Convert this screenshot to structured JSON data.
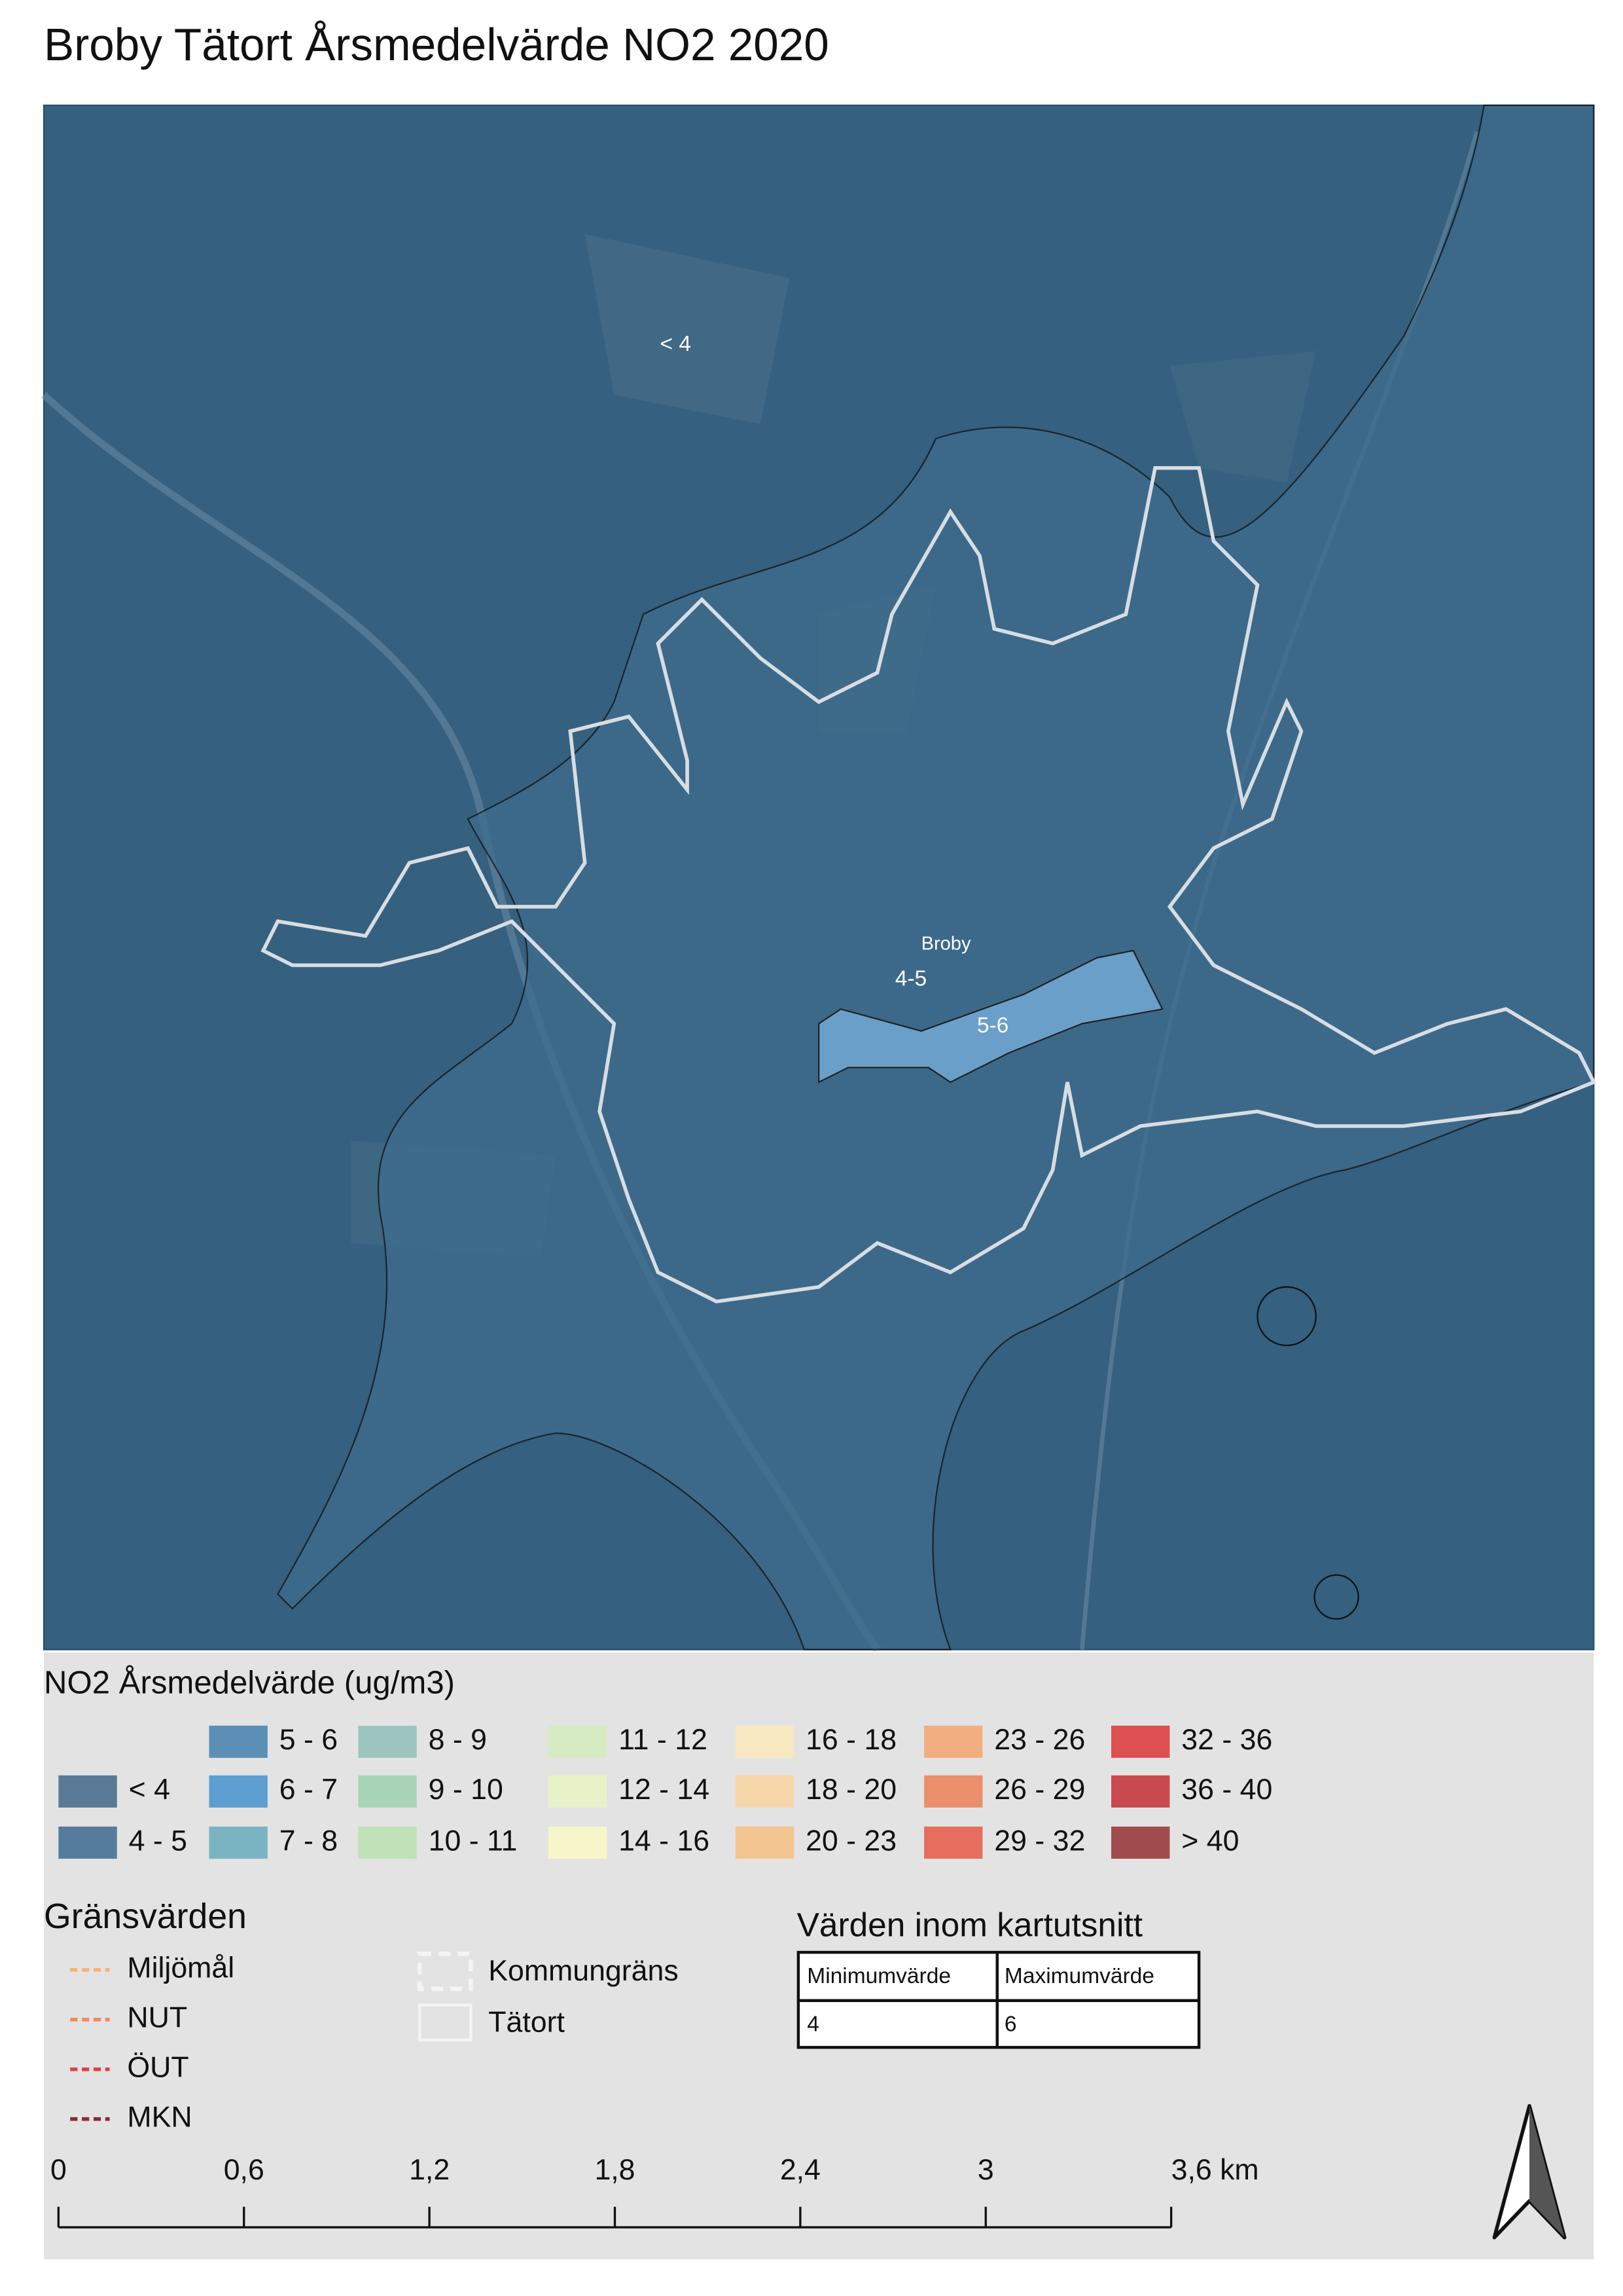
{
  "title": "Broby Tätort Årsmedelvärde NO2 2020",
  "map": {
    "labels": [
      "< 4",
      "Broby",
      "4-5",
      "5-6"
    ]
  },
  "legend": {
    "title": "NO2 Årsmedelvärde (ug/m3)",
    "items": [
      {
        "label": "< 4",
        "color": "#5a7994"
      },
      {
        "label": "4 - 5",
        "color": "#557c9c"
      },
      {
        "label": "5 - 6",
        "color": "#5b8fb6"
      },
      {
        "label": "6 - 7",
        "color": "#5c9ed0"
      },
      {
        "label": "7 - 8",
        "color": "#7ab4c2"
      },
      {
        "label": "8 - 9",
        "color": "#9cc5bf"
      },
      {
        "label": "9 - 10",
        "color": "#a9d5b6"
      },
      {
        "label": "10 - 11",
        "color": "#c1e1b9"
      },
      {
        "label": "11 - 12",
        "color": "#d6ebc2"
      },
      {
        "label": "12 - 14",
        "color": "#e7f2c9"
      },
      {
        "label": "14 - 16",
        "color": "#f7f6c9"
      },
      {
        "label": "16 - 18",
        "color": "#f8e8c1"
      },
      {
        "label": "18 - 20",
        "color": "#f5d7a9"
      },
      {
        "label": "20 - 23",
        "color": "#f3c590"
      },
      {
        "label": "23 - 26",
        "color": "#f0ae81"
      },
      {
        "label": "26 - 29",
        "color": "#ea8e6c"
      },
      {
        "label": "29 - 32",
        "color": "#e66e5e"
      },
      {
        "label": "32 - 36",
        "color": "#de4f52"
      },
      {
        "label": "36 - 40",
        "color": "#c84a50"
      },
      {
        "label": "> 40",
        "color": "#a04c4e"
      }
    ]
  },
  "limits": {
    "title": "Gränsvärden",
    "items": [
      {
        "label": "Miljömål",
        "color": "#f5b27a"
      },
      {
        "label": "NUT",
        "color": "#f08a60"
      },
      {
        "label": "ÖUT",
        "color": "#e0403e"
      },
      {
        "label": "MKN",
        "color": "#8b2a30"
      }
    ]
  },
  "boundaries": [
    "Kommungräns",
    "Tätort"
  ],
  "extent_table": {
    "title": "Värden inom kartutsnitt",
    "headers": [
      "Minimumvärde",
      "Maximumvärde"
    ],
    "rows": [
      [
        4,
        6
      ]
    ]
  },
  "scale_bar": {
    "labels": [
      "0",
      "0,6",
      "1,2",
      "1,8",
      "2,4",
      "3",
      "3,6 km"
    ]
  }
}
